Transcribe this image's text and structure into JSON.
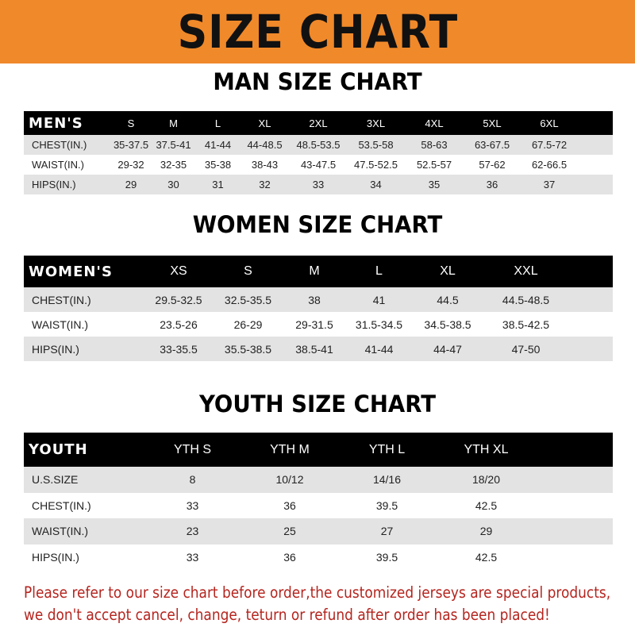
{
  "banner_title": "SIZE CHART",
  "accent_color": "#f0892a",
  "notice_color": "#b5241e",
  "men": {
    "title": "MAN SIZE CHART",
    "header": [
      "MEN'S",
      "S",
      "M",
      "L",
      "XL",
      "2XL",
      "3XL",
      "4XL",
      "5XL",
      "6XL"
    ],
    "rows": [
      [
        "CHEST(IN.)",
        "35-37.5",
        "37.5-41",
        "41-44",
        "44-48.5",
        "48.5-53.5",
        "53.5-58",
        "58-63",
        "63-67.5",
        "67.5-72"
      ],
      [
        "WAIST(IN.)",
        "29-32",
        "32-35",
        "35-38",
        "38-43",
        "43-47.5",
        "47.5-52.5",
        "52.5-57",
        "57-62",
        "62-66.5"
      ],
      [
        "HIPS(IN.)",
        "29",
        "30",
        "31",
        "32",
        "33",
        "34",
        "35",
        "36",
        "37"
      ]
    ]
  },
  "women": {
    "title": "WOMEN SIZE CHART",
    "header": [
      "WOMEN'S",
      "XS",
      "S",
      "M",
      "L",
      "XL",
      "XXL"
    ],
    "rows": [
      [
        "CHEST(IN.)",
        "29.5-32.5",
        "32.5-35.5",
        "38",
        "41",
        "44.5",
        "44.5-48.5"
      ],
      [
        "WAIST(IN.)",
        "23.5-26",
        "26-29",
        "29-31.5",
        "31.5-34.5",
        "34.5-38.5",
        "38.5-42.5"
      ],
      [
        "HIPS(IN.)",
        "33-35.5",
        "35.5-38.5",
        "38.5-41",
        "41-44",
        "44-47",
        "47-50"
      ]
    ]
  },
  "youth": {
    "title": "YOUTH SIZE CHART",
    "header": [
      "YOUTH",
      "YTH S",
      "YTH M",
      "YTH L",
      "YTH XL"
    ],
    "rows": [
      [
        "U.S.SIZE",
        "8",
        "10/12",
        "14/16",
        "18/20"
      ],
      [
        "CHEST(IN.)",
        "33",
        "36",
        "39.5",
        "42.5"
      ],
      [
        "WAIST(IN.)",
        "23",
        "25",
        "27",
        "29"
      ],
      [
        "HIPS(IN.)",
        "33",
        "36",
        "39.5",
        "42.5"
      ]
    ]
  },
  "notice": [
    "Please refer to our size chart before order,the customized jerseys are special products,",
    "we don't accept cancel, change, teturn or refund after order has been placed!"
  ]
}
